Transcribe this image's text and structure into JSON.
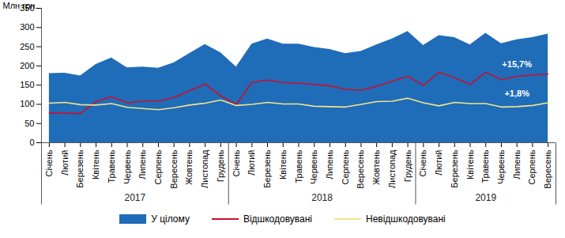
{
  "chart_data": {
    "type": "line",
    "ylabel": "Млн грн.",
    "categories": [
      "Січень",
      "Лютий",
      "Березень",
      "Квітень",
      "Травень",
      "Червень",
      "Липень",
      "Серпень",
      "Вересень",
      "Жовтень",
      "Листопад",
      "Грудень",
      "Січень",
      "Лютий",
      "Березень",
      "Квітень",
      "Травень",
      "Червень",
      "Липень",
      "Серпень",
      "Вересень",
      "Жовтень",
      "Листопад",
      "Грудень",
      "Січень",
      "Лютий",
      "Березень",
      "Квітень",
      "Травень",
      "Червень",
      "Липень",
      "Серпень",
      "Вересень"
    ],
    "groups": [
      {
        "label": "2017",
        "count": 12
      },
      {
        "label": "2018",
        "count": 12
      },
      {
        "label": "2019",
        "count": 9
      }
    ],
    "series": [
      {
        "name": "У цілому",
        "type": "area",
        "color": "#1f6cb8",
        "values": [
          180,
          181,
          174,
          204,
          221,
          195,
          197,
          194,
          208,
          232,
          256,
          234,
          197,
          257,
          270,
          257,
          257,
          248,
          243,
          232,
          238,
          255,
          270,
          290,
          253,
          279,
          274,
          255,
          285,
          258,
          268,
          274,
          283
        ]
      },
      {
        "name": "Відшкодовувані",
        "type": "line",
        "color": "#c8102e",
        "values": [
          77,
          77,
          76,
          107,
          120,
          104,
          108,
          108,
          118,
          135,
          153,
          122,
          100,
          157,
          163,
          157,
          155,
          152,
          148,
          139,
          137,
          147,
          160,
          173,
          149,
          183,
          169,
          152,
          183,
          164,
          173,
          176,
          179
        ]
      },
      {
        "name": "Невідшкодовувані",
        "type": "line",
        "color": "#f2e38c",
        "values": [
          103,
          105,
          99,
          98,
          102,
          92,
          89,
          86,
          91,
          98,
          103,
          111,
          97,
          100,
          105,
          101,
          101,
          95,
          94,
          93,
          100,
          107,
          108,
          116,
          104,
          96,
          105,
          102,
          102,
          93,
          94,
          97,
          104
        ]
      }
    ],
    "annotations": [
      {
        "text": "+15,7%",
        "series": "Відшкодовувані"
      },
      {
        "text": "+1,8%",
        "series": "Невідшкодовувані"
      }
    ],
    "ylim": [
      0,
      350
    ],
    "yticks": [
      0,
      50,
      100,
      150,
      200,
      250,
      300,
      350
    ],
    "grid": false,
    "legend": "bottom"
  }
}
